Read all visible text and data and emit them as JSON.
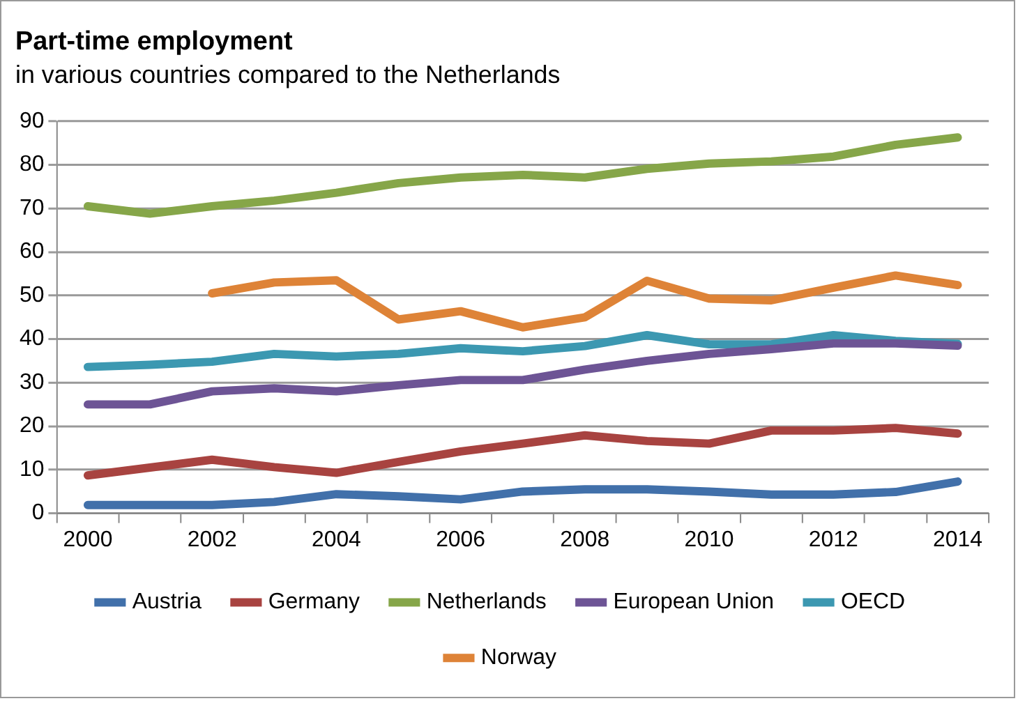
{
  "chart_data": {
    "type": "line",
    "title": "Part-time employment",
    "subtitle": "in various countries compared to the Netherlands",
    "categories": [
      "2000",
      null,
      "2002",
      null,
      "2004",
      null,
      "2006",
      null,
      "2008",
      null,
      "2010",
      null,
      "2012",
      null,
      "2014"
    ],
    "series": [
      {
        "name": "Austria",
        "color": "#4170aa",
        "values": [
          1.9,
          1.9,
          1.9,
          2.6,
          4.4,
          3.9,
          3.2,
          5.0,
          5.5,
          5.5,
          5.0,
          4.3,
          4.3,
          4.9,
          7.3
        ]
      },
      {
        "name": "Germany",
        "color": "#a84340",
        "values": [
          8.7,
          10.5,
          12.3,
          10.6,
          9.3,
          11.8,
          14.2,
          16.0,
          17.9,
          16.6,
          16.0,
          19.0,
          19.0,
          19.6,
          18.3
        ]
      },
      {
        "name": "Netherlands",
        "color": "#86a649",
        "values": [
          70.5,
          68.8,
          70.5,
          71.8,
          73.6,
          75.8,
          77.1,
          77.7,
          77.1,
          79.1,
          80.3,
          80.8,
          81.9,
          84.6,
          86.3
        ]
      },
      {
        "name": "European Union",
        "color": "#6d5495",
        "values": [
          25.0,
          25.0,
          28.0,
          28.7,
          28.0,
          29.4,
          30.6,
          30.6,
          33.0,
          35.0,
          36.6,
          37.7,
          39.0,
          39.0,
          38.5
        ]
      },
      {
        "name": "OECD",
        "color": "#3c98b1",
        "values": [
          33.6,
          34.1,
          34.8,
          36.6,
          36.0,
          36.6,
          37.9,
          37.2,
          38.4,
          40.9,
          38.8,
          38.8,
          40.9,
          39.6,
          38.9
        ]
      },
      {
        "name": "Norway",
        "color": "#de8337",
        "values": [
          null,
          null,
          50.5,
          53.0,
          53.5,
          44.5,
          46.4,
          42.7,
          45.0,
          53.4,
          49.3,
          48.9,
          51.8,
          54.6,
          52.4
        ]
      }
    ],
    "ylim": [
      0,
      90
    ],
    "yticks": [
      0,
      10,
      20,
      30,
      40,
      50,
      60,
      70,
      80,
      90
    ],
    "grid": "y",
    "legend": "bottom",
    "marker": "none",
    "line_style": "solid"
  }
}
